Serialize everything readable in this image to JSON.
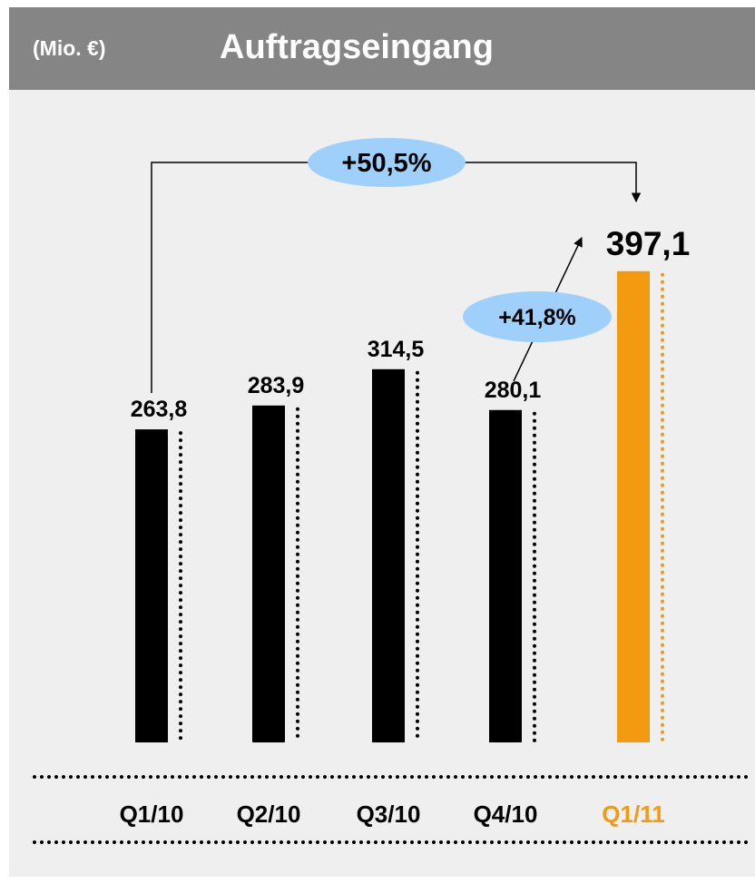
{
  "header": {
    "unit": "(Mio. €)",
    "title": "Auftragseingang"
  },
  "colors": {
    "background": "#efefef",
    "header": "#858585",
    "bar": "#000000",
    "highlight": "#f39a11",
    "bubble": "#9fd0fb"
  },
  "chart_data": {
    "type": "bar",
    "title": "Auftragseingang",
    "categories": [
      "Q1/10",
      "Q2/10",
      "Q3/10",
      "Q4/10",
      "Q1/11"
    ],
    "series": [
      {
        "values": [
          263.8,
          283.9,
          314.5,
          280.1,
          397.1
        ]
      }
    ],
    "value_labels": [
      "263,8",
      "283,9",
      "314,5",
      "280,1",
      "397,1"
    ],
    "highlight_index": 4,
    "ylim": [
      0,
      400
    ],
    "grid": false,
    "annotations": [
      {
        "text": "+50,5%",
        "from": "Q1/10",
        "to": "Q1/11"
      },
      {
        "text": "+41,8%",
        "from": "Q4/10",
        "to": "Q1/11"
      }
    ]
  }
}
